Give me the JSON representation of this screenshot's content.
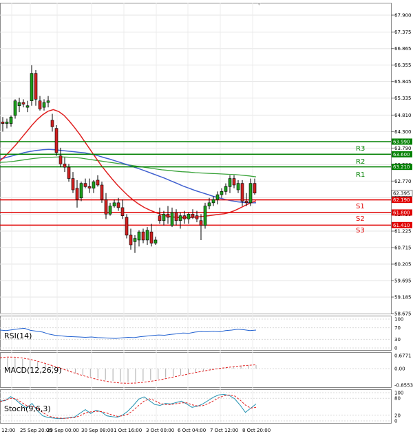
{
  "chart_data": {
    "type": "candlestick",
    "y_axis_ticks": [
      "67.900",
      "67.375",
      "66.865",
      "66.355",
      "65.845",
      "65.335",
      "64.810",
      "64.300",
      "63.790",
      "63.280",
      "62.770",
      "62.260",
      "61.750",
      "61.225",
      "60.715",
      "60.205",
      "59.695",
      "59.185",
      "58.675"
    ],
    "ylim": [
      58.675,
      67.9
    ],
    "x_axis_ticks": [
      "12:00",
      "25 Sep 20:00",
      "29 Sep 00:00",
      "30 Sep 08:00",
      "1 Oct 16:00",
      "3 Oct 00:00",
      "6 Oct 04:00",
      "7 Oct 12:00",
      "8 Oct 20:00"
    ],
    "current_price": "62.395",
    "levels": [
      {
        "name": "R3",
        "value": "63.990",
        "color": "#008000"
      },
      {
        "name": "R2",
        "value": "63.600",
        "color": "#008000"
      },
      {
        "name": "R1",
        "value": "63.210",
        "color": "#008000"
      },
      {
        "name": "S1",
        "value": "62.190",
        "color": "#e00000"
      },
      {
        "name": "S2",
        "value": "61.800",
        "color": "#e00000"
      },
      {
        "name": "S3",
        "value": "61.410",
        "color": "#e00000"
      }
    ],
    "level_labels": {
      "R3": {
        "value": "63.990"
      },
      "R2": {
        "value": "63.600"
      },
      "R1": {
        "value": "63.210"
      },
      "S1": {
        "value": "62.190"
      },
      "S2": {
        "value": "61.800"
      },
      "S3": {
        "value": "61.410"
      }
    },
    "candles": [
      [
        64.6,
        64.75,
        64.3,
        64.55
      ],
      [
        64.55,
        64.7,
        64.4,
        64.6
      ],
      [
        64.55,
        64.8,
        64.45,
        64.75
      ],
      [
        64.8,
        65.3,
        64.7,
        65.25
      ],
      [
        65.1,
        65.35,
        64.9,
        65.2
      ],
      [
        65.2,
        65.3,
        65.05,
        65.15
      ],
      [
        65.05,
        65.25,
        64.9,
        65.1
      ],
      [
        65.25,
        66.35,
        65.1,
        66.1
      ],
      [
        66.1,
        66.2,
        65.1,
        65.3
      ],
      [
        65.25,
        65.4,
        64.95,
        65.0
      ],
      [
        65.05,
        65.3,
        64.95,
        65.2
      ],
      [
        65.2,
        65.4,
        65.05,
        65.25
      ],
      [
        64.65,
        64.85,
        64.3,
        64.45
      ],
      [
        64.4,
        64.5,
        63.55,
        63.65
      ],
      [
        63.55,
        63.8,
        63.2,
        63.3
      ],
      [
        63.3,
        63.5,
        63.05,
        63.2
      ],
      [
        63.2,
        63.3,
        62.75,
        62.85
      ],
      [
        62.85,
        63.05,
        62.4,
        62.5
      ],
      [
        62.55,
        62.8,
        61.95,
        62.2
      ],
      [
        62.25,
        62.75,
        62.15,
        62.7
      ],
      [
        62.7,
        62.85,
        62.55,
        62.6
      ],
      [
        62.6,
        62.85,
        62.4,
        62.55
      ],
      [
        62.55,
        62.8,
        62.4,
        62.75
      ],
      [
        62.8,
        62.95,
        62.6,
        62.65
      ],
      [
        62.65,
        62.75,
        62.1,
        62.2
      ],
      [
        62.2,
        62.4,
        61.6,
        61.75
      ],
      [
        61.75,
        62.1,
        61.7,
        62.0
      ],
      [
        62.0,
        62.2,
        61.95,
        62.1
      ],
      [
        62.1,
        62.25,
        61.85,
        61.95
      ],
      [
        61.95,
        62.2,
        61.6,
        61.7
      ],
      [
        61.65,
        61.75,
        61.0,
        61.1
      ],
      [
        61.1,
        61.3,
        60.65,
        60.8
      ],
      [
        60.9,
        61.1,
        60.55,
        61.0
      ],
      [
        60.95,
        61.25,
        60.75,
        61.2
      ],
      [
        61.2,
        61.3,
        60.85,
        60.95
      ],
      [
        60.95,
        61.35,
        60.8,
        61.25
      ],
      [
        61.2,
        61.45,
        60.75,
        60.85
      ],
      [
        60.85,
        61.05,
        60.8,
        60.95
      ],
      [
        61.7,
        61.95,
        61.45,
        61.55
      ],
      [
        61.55,
        61.85,
        61.4,
        61.75
      ],
      [
        61.75,
        62.0,
        61.45,
        61.65
      ],
      [
        61.4,
        61.95,
        61.35,
        61.8
      ],
      [
        61.8,
        61.9,
        61.4,
        61.55
      ],
      [
        61.55,
        61.8,
        61.3,
        61.7
      ],
      [
        61.7,
        61.85,
        61.45,
        61.6
      ],
      [
        61.6,
        61.8,
        61.45,
        61.75
      ],
      [
        61.75,
        61.9,
        61.6,
        61.65
      ],
      [
        61.7,
        61.85,
        61.5,
        61.6
      ],
      [
        61.55,
        61.75,
        60.95,
        61.4
      ],
      [
        61.4,
        62.1,
        61.3,
        62.0
      ],
      [
        62.0,
        62.25,
        61.9,
        62.1
      ],
      [
        62.1,
        62.3,
        62.0,
        62.2
      ],
      [
        62.2,
        62.45,
        62.05,
        62.35
      ],
      [
        62.35,
        62.55,
        62.25,
        62.45
      ],
      [
        62.45,
        62.7,
        62.35,
        62.6
      ],
      [
        62.6,
        62.95,
        62.4,
        62.85
      ],
      [
        62.85,
        62.95,
        62.55,
        62.65
      ],
      [
        62.5,
        62.8,
        62.4,
        62.7
      ],
      [
        62.7,
        62.8,
        62.0,
        62.15
      ],
      [
        62.15,
        62.4,
        62.0,
        62.1
      ],
      [
        62.1,
        62.85,
        62.0,
        62.7
      ],
      [
        62.7,
        62.85,
        62.35,
        62.4
      ]
    ],
    "red_ma": [
      63.4,
      63.55,
      63.72,
      63.9,
      64.1,
      64.3,
      64.5,
      64.68,
      64.82,
      64.93,
      64.98,
      64.92,
      64.8,
      64.62,
      64.42,
      64.2,
      63.96,
      63.72,
      63.48,
      63.25,
      63.04,
      62.84,
      62.65,
      62.48,
      62.32,
      62.18,
      62.06,
      61.96,
      61.88,
      61.81,
      61.75,
      61.7,
      61.67,
      61.65,
      61.64,
      61.64,
      61.65,
      61.66,
      61.68,
      61.7,
      61.72,
      61.74,
      61.76,
      61.8,
      61.86,
      61.94,
      62.02,
      62.1,
      62.16
    ],
    "blue_ma": [
      63.45,
      63.5,
      63.55,
      63.6,
      63.65,
      63.69,
      63.72,
      63.74,
      63.75,
      63.74,
      63.72,
      63.7,
      63.68,
      63.66,
      63.64,
      63.6,
      63.56,
      63.5,
      63.45,
      63.39,
      63.33,
      63.27,
      63.2,
      63.14,
      63.07,
      63.0,
      62.93,
      62.86,
      62.78,
      62.7,
      62.62,
      62.55,
      62.48,
      62.42,
      62.36,
      62.3,
      62.25,
      62.2,
      62.16,
      62.13,
      62.11,
      62.1,
      62.1
    ],
    "green_ma": [
      63.35,
      63.36,
      63.38,
      63.41,
      63.44,
      63.47,
      63.49,
      63.5,
      63.51,
      63.52,
      63.51,
      63.5,
      63.48,
      63.45,
      63.42,
      63.39,
      63.36,
      63.33,
      63.3,
      63.27,
      63.24,
      63.21,
      63.18,
      63.15,
      63.12,
      63.1,
      63.08,
      63.06,
      63.05,
      63.03,
      63.02,
      63.01,
      63.0,
      62.99,
      62.98,
      62.97,
      62.95,
      62.93,
      62.9
    ],
    "rsi": {
      "label": "RSI(14)",
      "ticks": [
        "100",
        "70",
        "30",
        "0"
      ],
      "values": [
        62,
        60,
        63,
        66,
        68,
        61,
        58,
        55,
        48,
        44,
        42,
        40,
        39,
        38,
        37,
        38,
        36,
        35,
        34,
        33,
        35,
        37,
        36,
        39,
        41,
        43,
        45,
        44,
        47,
        49,
        52,
        51,
        55,
        57,
        56,
        58,
        56,
        60,
        62,
        65,
        63,
        60,
        62
      ]
    },
    "macd": {
      "label": "MACD(12,26,9)",
      "ticks": [
        "0.6771",
        "0.00",
        "-0.8553"
      ],
      "signal": [
        0.56,
        0.6,
        0.59,
        0.55,
        0.48,
        0.38,
        0.27,
        0.15,
        0.02,
        -0.11,
        -0.24,
        -0.36,
        -0.47,
        -0.57,
        -0.65,
        -0.71,
        -0.75,
        -0.76,
        -0.75,
        -0.71,
        -0.66,
        -0.6,
        -0.52,
        -0.44,
        -0.36,
        -0.28,
        -0.2,
        -0.13,
        -0.06,
        0.0,
        0.05,
        0.1,
        0.14,
        0.17,
        0.2
      ]
    },
    "stoch": {
      "label": "Stoch(9,6,3)",
      "ticks": [
        "100",
        "80",
        "20",
        "0"
      ],
      "k": [
        70,
        72,
        86,
        74,
        58,
        45,
        62,
        36,
        18,
        12,
        10,
        8,
        9,
        11,
        14,
        27,
        40,
        26,
        38,
        32,
        18,
        15,
        13,
        21,
        35,
        55,
        77,
        85,
        72,
        58,
        55,
        62,
        60,
        65,
        70,
        60,
        48,
        52,
        60,
        72,
        84,
        92,
        94,
        90,
        78,
        56,
        30,
        45,
        60
      ],
      "d": [
        68,
        74,
        80,
        78,
        66,
        54,
        52,
        45,
        30,
        18,
        12,
        10,
        9,
        10,
        12,
        18,
        28,
        32,
        34,
        33,
        28,
        21,
        16,
        18,
        24,
        38,
        55,
        70,
        78,
        72,
        62,
        58,
        58,
        61,
        64,
        64,
        57,
        53,
        54,
        61,
        71,
        82,
        89,
        92,
        88,
        74,
        56,
        45,
        48
      ]
    }
  }
}
